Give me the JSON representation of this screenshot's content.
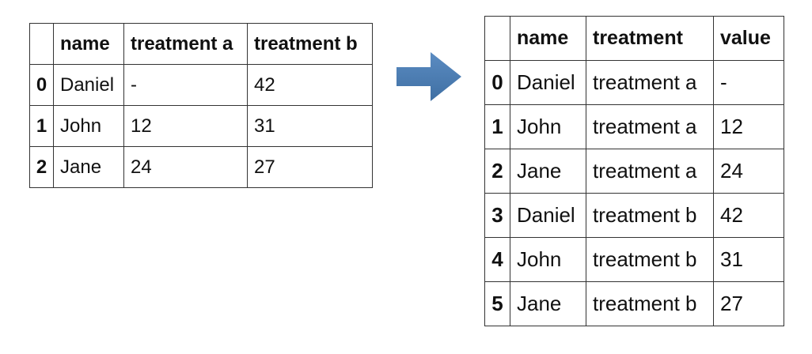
{
  "wide_table": {
    "columns": [
      "",
      "name",
      "treatment a",
      "treatment b"
    ],
    "rows": [
      {
        "index": "0",
        "name": "Daniel",
        "treatment_a": "-",
        "treatment_b": "42"
      },
      {
        "index": "1",
        "name": "John",
        "treatment_a": "12",
        "treatment_b": "31"
      },
      {
        "index": "2",
        "name": "Jane",
        "treatment_a": "24",
        "treatment_b": "27"
      }
    ]
  },
  "long_table": {
    "columns": [
      "",
      "name",
      "treatment",
      "value"
    ],
    "rows": [
      {
        "index": "0",
        "name": "Daniel",
        "treatment": "treatment a",
        "value": "-"
      },
      {
        "index": "1",
        "name": "John",
        "treatment": "treatment a",
        "value": "12"
      },
      {
        "index": "2",
        "name": "Jane",
        "treatment": "treatment a",
        "value": "24"
      },
      {
        "index": "3",
        "name": "Daniel",
        "treatment": "treatment b",
        "value": "42"
      },
      {
        "index": "4",
        "name": "John",
        "treatment": "treatment b",
        "value": "31"
      },
      {
        "index": "5",
        "name": "Jane",
        "treatment": "treatment b",
        "value": "27"
      }
    ]
  },
  "colors": {
    "arrow": "#4a7bb0",
    "border": "#333333",
    "text": "#111111"
  },
  "icons": {
    "arrow": "right-arrow-icon"
  }
}
